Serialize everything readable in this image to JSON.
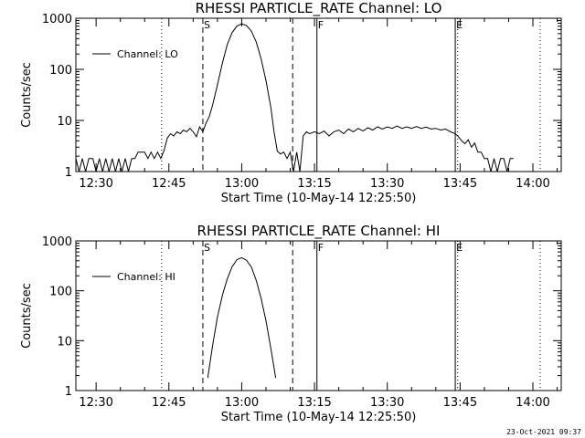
{
  "timestamp": "23-Oct-2021 09:37",
  "chart_data": [
    {
      "type": "line",
      "title": "RHESSI PARTICLE_RATE Channel: LO",
      "xlabel": "Start Time (10-May-14 12:25:50)",
      "ylabel": "Counts/sec",
      "yscale": "log",
      "ylim": [
        1,
        1000
      ],
      "yticks": [
        {
          "v": 1,
          "label": "1"
        },
        {
          "v": 10,
          "label": "10"
        },
        {
          "v": 100,
          "label": "100"
        },
        {
          "v": 1000,
          "label": "1000"
        }
      ],
      "xlim": [
        "12:25:50",
        "14:05:50"
      ],
      "xticks": [
        "12:30",
        "12:45",
        "13:00",
        "13:15",
        "13:30",
        "13:45",
        "14:00"
      ],
      "legend": {
        "label": "Channel: LO",
        "position": "top-left"
      },
      "markers": [
        {
          "time": "12:43:30",
          "style": "dotted",
          "label": ""
        },
        {
          "time": "12:52:00",
          "style": "dashed",
          "label": "S"
        },
        {
          "time": "13:10:30",
          "style": "dashed",
          "label": ""
        },
        {
          "time": "13:15:30",
          "style": "solid",
          "label": "F"
        },
        {
          "time": "13:44:00",
          "style": "solid",
          "label": "E"
        },
        {
          "time": "13:44:30",
          "style": "dotted",
          "label": ""
        },
        {
          "time": "14:01:30",
          "style": "dotted",
          "label": ""
        }
      ],
      "series": [
        {
          "values": [
            [
              "12:25:50",
              1.8
            ],
            [
              "12:26:30",
              1.0
            ],
            [
              "12:27:10",
              1.8
            ],
            [
              "12:27:50",
              1.0
            ],
            [
              "12:28:30",
              1.8
            ],
            [
              "12:29:20",
              1.8
            ],
            [
              "12:30:00",
              1.0
            ],
            [
              "12:30:40",
              1.8
            ],
            [
              "12:31:20",
              1.0
            ],
            [
              "12:32:00",
              1.8
            ],
            [
              "12:32:40",
              1.0
            ],
            [
              "12:33:20",
              1.8
            ],
            [
              "12:34:00",
              1.0
            ],
            [
              "12:34:40",
              1.8
            ],
            [
              "12:35:20",
              1.0
            ],
            [
              "12:36:00",
              1.8
            ],
            [
              "12:36:40",
              1.0
            ],
            [
              "12:37:20",
              1.8
            ],
            [
              "12:38:00",
              1.8
            ],
            [
              "12:38:40",
              2.4
            ],
            [
              "12:39:20",
              2.4
            ],
            [
              "12:40:00",
              2.4
            ],
            [
              "12:40:40",
              1.8
            ],
            [
              "12:41:20",
              2.4
            ],
            [
              "12:42:00",
              1.8
            ],
            [
              "12:42:40",
              2.4
            ],
            [
              "12:43:20",
              1.8
            ],
            [
              "12:44:00",
              2.6
            ],
            [
              "12:44:40",
              4.5
            ],
            [
              "12:45:20",
              5.5
            ],
            [
              "12:46:00",
              5.0
            ],
            [
              "12:46:40",
              6.0
            ],
            [
              "12:47:20",
              5.5
            ],
            [
              "12:48:00",
              6.5
            ],
            [
              "12:48:40",
              6.0
            ],
            [
              "12:49:20",
              7.0
            ],
            [
              "12:50:00",
              6.0
            ],
            [
              "12:50:40",
              4.8
            ],
            [
              "12:51:20",
              7.5
            ],
            [
              "12:52:00",
              6.0
            ],
            [
              "12:52:40",
              9.0
            ],
            [
              "12:53:20",
              12.0
            ],
            [
              "12:54:00",
              20.0
            ],
            [
              "12:55:00",
              50.0
            ],
            [
              "12:56:00",
              130.0
            ],
            [
              "12:57:00",
              300.0
            ],
            [
              "12:58:00",
              520.0
            ],
            [
              "12:59:00",
              700.0
            ],
            [
              "13:00:00",
              780.0
            ],
            [
              "13:01:00",
              720.0
            ],
            [
              "13:02:00",
              560.0
            ],
            [
              "13:03:00",
              340.0
            ],
            [
              "13:04:00",
              160.0
            ],
            [
              "13:05:00",
              60.0
            ],
            [
              "13:06:00",
              18.0
            ],
            [
              "13:06:40",
              6.0
            ],
            [
              "13:07:20",
              2.5
            ],
            [
              "13:08:00",
              2.2
            ],
            [
              "13:08:40",
              2.4
            ],
            [
              "13:09:20",
              1.8
            ],
            [
              "13:10:00",
              2.4
            ],
            [
              "13:10:40",
              1.0
            ],
            [
              "13:11:20",
              2.4
            ],
            [
              "13:12:00",
              1.0
            ],
            [
              "13:12:40",
              5.0
            ],
            [
              "13:13:20",
              6.0
            ],
            [
              "13:14:00",
              5.5
            ],
            [
              "13:15:00",
              6.0
            ],
            [
              "13:16:00",
              5.5
            ],
            [
              "13:17:00",
              6.2
            ],
            [
              "13:18:00",
              5.0
            ],
            [
              "13:19:00",
              6.0
            ],
            [
              "13:20:00",
              6.5
            ],
            [
              "13:21:00",
              5.5
            ],
            [
              "13:22:00",
              6.8
            ],
            [
              "13:23:00",
              6.0
            ],
            [
              "13:24:00",
              7.0
            ],
            [
              "13:25:00",
              6.2
            ],
            [
              "13:26:00",
              7.2
            ],
            [
              "13:27:00",
              6.5
            ],
            [
              "13:28:00",
              7.5
            ],
            [
              "13:29:00",
              6.8
            ],
            [
              "13:30:00",
              7.5
            ],
            [
              "13:31:00",
              7.0
            ],
            [
              "13:32:00",
              7.8
            ],
            [
              "13:33:00",
              7.0
            ],
            [
              "13:34:00",
              7.5
            ],
            [
              "13:35:00",
              7.0
            ],
            [
              "13:36:00",
              7.6
            ],
            [
              "13:37:00",
              7.0
            ],
            [
              "13:38:00",
              7.4
            ],
            [
              "13:39:00",
              6.8
            ],
            [
              "13:40:00",
              7.0
            ],
            [
              "13:41:00",
              6.5
            ],
            [
              "13:42:00",
              6.8
            ],
            [
              "13:43:00",
              6.0
            ],
            [
              "13:44:00",
              5.5
            ],
            [
              "13:44:40",
              4.8
            ],
            [
              "13:45:20",
              4.0
            ],
            [
              "13:46:00",
              3.5
            ],
            [
              "13:46:40",
              4.2
            ],
            [
              "13:47:20",
              3.0
            ],
            [
              "13:48:00",
              3.6
            ],
            [
              "13:48:40",
              2.4
            ],
            [
              "13:49:20",
              2.4
            ],
            [
              "13:50:00",
              1.8
            ],
            [
              "13:50:40",
              1.8
            ],
            [
              "13:51:20",
              1.0
            ],
            [
              "13:52:00",
              1.8
            ],
            [
              "13:52:40",
              1.0
            ],
            [
              "13:53:20",
              1.8
            ],
            [
              "13:54:00",
              1.8
            ],
            [
              "13:54:40",
              1.0
            ],
            [
              "13:55:20",
              1.8
            ],
            [
              "13:56:00",
              1.8
            ]
          ]
        }
      ]
    },
    {
      "type": "line",
      "title": "RHESSI PARTICLE_RATE Channel: HI",
      "xlabel": "Start Time (10-May-14 12:25:50)",
      "ylabel": "Counts/sec",
      "yscale": "log",
      "ylim": [
        1,
        1000
      ],
      "yticks": [
        {
          "v": 1,
          "label": "1"
        },
        {
          "v": 10,
          "label": "10"
        },
        {
          "v": 100,
          "label": "100"
        },
        {
          "v": 1000,
          "label": "1000"
        }
      ],
      "xlim": [
        "12:25:50",
        "14:05:50"
      ],
      "xticks": [
        "12:30",
        "12:45",
        "13:00",
        "13:15",
        "13:30",
        "13:45",
        "14:00"
      ],
      "legend": {
        "label": "Channel: HI",
        "position": "top-left"
      },
      "markers": [
        {
          "time": "12:43:30",
          "style": "dotted",
          "label": ""
        },
        {
          "time": "12:52:00",
          "style": "dashed",
          "label": "S"
        },
        {
          "time": "13:10:30",
          "style": "dashed",
          "label": ""
        },
        {
          "time": "13:15:30",
          "style": "solid",
          "label": "F"
        },
        {
          "time": "13:44:00",
          "style": "solid",
          "label": "E"
        },
        {
          "time": "13:44:30",
          "style": "dotted",
          "label": ""
        },
        {
          "time": "14:01:30",
          "style": "dotted",
          "label": ""
        }
      ],
      "series": [
        {
          "values": [
            [
              "12:53:00",
              1.8
            ],
            [
              "12:54:00",
              8.0
            ],
            [
              "12:55:00",
              30.0
            ],
            [
              "12:56:00",
              80.0
            ],
            [
              "12:57:00",
              170.0
            ],
            [
              "12:58:00",
              300.0
            ],
            [
              "12:59:00",
              420.0
            ],
            [
              "13:00:00",
              460.0
            ],
            [
              "13:01:00",
              410.0
            ],
            [
              "13:02:00",
              300.0
            ],
            [
              "13:03:00",
              160.0
            ],
            [
              "13:04:00",
              70.0
            ],
            [
              "13:05:00",
              25.0
            ],
            [
              "13:06:00",
              7.0
            ],
            [
              "13:07:00",
              1.8
            ]
          ]
        }
      ]
    }
  ]
}
